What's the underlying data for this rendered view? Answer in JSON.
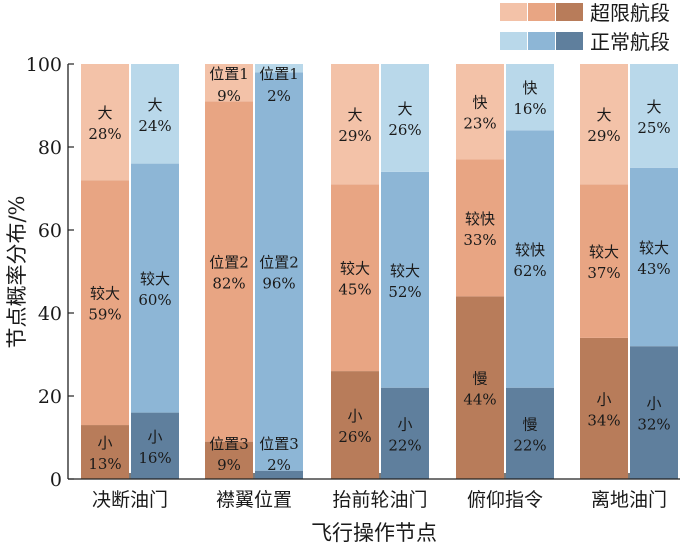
{
  "chart_data": {
    "type": "bar",
    "stacked": true,
    "xlabel": "飞行操作节点",
    "ylabel": "节点概率分布/%",
    "ylim": [
      0,
      100
    ],
    "yticks": [
      0,
      20,
      40,
      60,
      80,
      100
    ],
    "grid": false,
    "legend_position": "top-right",
    "categories": [
      "决断油门",
      "襟翼位置",
      "抬前轮油门",
      "俯仰指令",
      "离地油门"
    ],
    "series": [
      {
        "name": "超限航段",
        "colors": [
          "#f3c2a8",
          "#e8a583",
          "#b87c5a"
        ],
        "stacks": [
          [
            {
              "label": "小",
              "value": 13
            },
            {
              "label": "较大",
              "value": 59
            },
            {
              "label": "大",
              "value": 28
            }
          ],
          [
            {
              "label": "位置3",
              "value": 9
            },
            {
              "label": "位置2",
              "value": 82
            },
            {
              "label": "位置1",
              "value": 9
            }
          ],
          [
            {
              "label": "小",
              "value": 26
            },
            {
              "label": "较大",
              "value": 45
            },
            {
              "label": "大",
              "value": 29
            }
          ],
          [
            {
              "label": "慢",
              "value": 44
            },
            {
              "label": "较快",
              "value": 33
            },
            {
              "label": "快",
              "value": 23
            }
          ],
          [
            {
              "label": "小",
              "value": 34
            },
            {
              "label": "较大",
              "value": 37
            },
            {
              "label": "大",
              "value": 29
            }
          ]
        ]
      },
      {
        "name": "正常航段",
        "colors": [
          "#b9d8ea",
          "#8db6d6",
          "#5f7f9d"
        ],
        "stacks": [
          [
            {
              "label": "小",
              "value": 16
            },
            {
              "label": "较大",
              "value": 60
            },
            {
              "label": "大",
              "value": 24
            }
          ],
          [
            {
              "label": "位置3",
              "value": 2
            },
            {
              "label": "位置2",
              "value": 96
            },
            {
              "label": "位置1",
              "value": 2
            }
          ],
          [
            {
              "label": "小",
              "value": 22
            },
            {
              "label": "较大",
              "value": 52
            },
            {
              "label": "大",
              "value": 26
            }
          ],
          [
            {
              "label": "慢",
              "value": 22
            },
            {
              "label": "较快",
              "value": 62
            },
            {
              "label": "快",
              "value": 16
            }
          ],
          [
            {
              "label": "小",
              "value": 32
            },
            {
              "label": "较大",
              "value": 43
            },
            {
              "label": "大",
              "value": 25
            }
          ]
        ]
      }
    ]
  }
}
